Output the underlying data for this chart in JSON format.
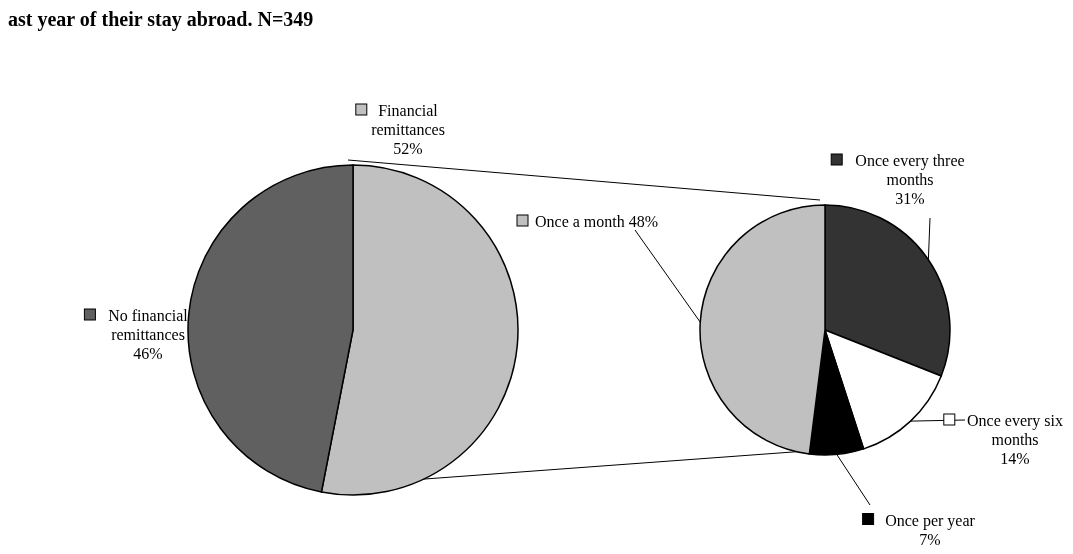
{
  "chart_data": [
    {
      "type": "pie",
      "title": "ast year of their stay abroad. N=349",
      "categories": [
        "Financial remittances",
        "No financial remittances"
      ],
      "values": [
        52,
        46
      ],
      "value_labels": [
        "52%",
        "46%"
      ],
      "colors": [
        "#c0c0c0",
        "#606060"
      ],
      "legend": "top left"
    },
    {
      "type": "pie",
      "categories": [
        "Once every three months",
        "Once every six months",
        "Once per year",
        "Once a month"
      ],
      "values": [
        31,
        14,
        7,
        48
      ],
      "value_labels": [
        "31%",
        "14%",
        "7%",
        "48%"
      ],
      "colors": [
        "#333333",
        "#ffffff",
        "#000000",
        "#c0c0c0"
      ],
      "legend": "bottom left"
    }
  ]
}
